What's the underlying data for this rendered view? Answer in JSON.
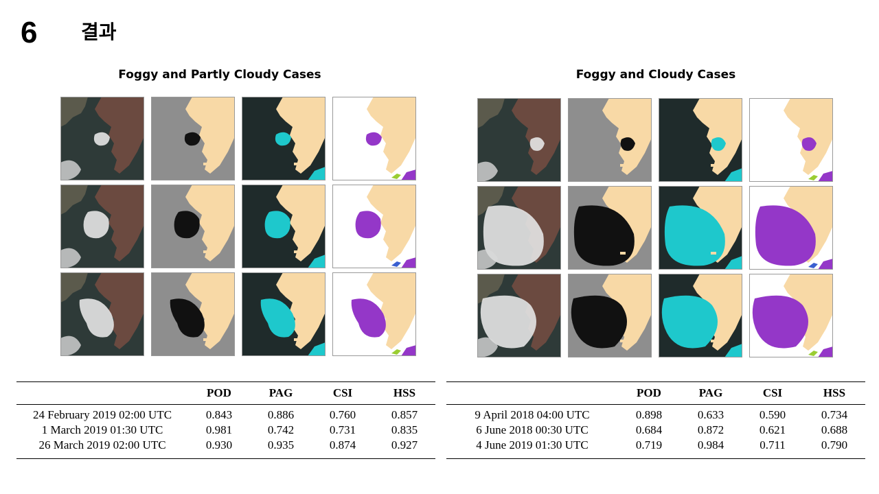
{
  "section": {
    "number": "6",
    "title": "결과"
  },
  "left_panel": {
    "title": "Foggy and Partly Cloudy Cases",
    "table": {
      "headers": [
        "",
        "POD",
        "PAG",
        "CSI",
        "HSS"
      ],
      "rows": [
        [
          "24 February 2019 02:00 UTC",
          "0.843",
          "0.886",
          "0.760",
          "0.857"
        ],
        [
          "1 March 2019 01:30 UTC",
          "0.981",
          "0.742",
          "0.731",
          "0.835"
        ],
        [
          "26 March 2019 02:00 UTC",
          "0.930",
          "0.935",
          "0.874",
          "0.927"
        ]
      ]
    }
  },
  "right_panel": {
    "title": "Foggy and Cloudy Cases",
    "table": {
      "headers": [
        "",
        "POD",
        "PAG",
        "CSI",
        "HSS"
      ],
      "rows": [
        [
          "9 April 2018 04:00 UTC",
          "0.898",
          "0.633",
          "0.590",
          "0.734"
        ],
        [
          "6 June 2018 00:30 UTC",
          "0.684",
          "0.872",
          "0.621",
          "0.688"
        ],
        [
          "4 June 2019 01:30 UTC",
          "0.719",
          "0.984",
          "0.711",
          "0.790"
        ]
      ]
    }
  },
  "colors": {
    "land_mask": "#f8d9a6",
    "fog_detected": "#1ec8cc",
    "fog_verified": "#9437c8",
    "false_alarm": "#9acd32",
    "missed": "#3a5fd0",
    "sea_dark": "#2e3a38",
    "land_rgb": "#6b4a40"
  }
}
